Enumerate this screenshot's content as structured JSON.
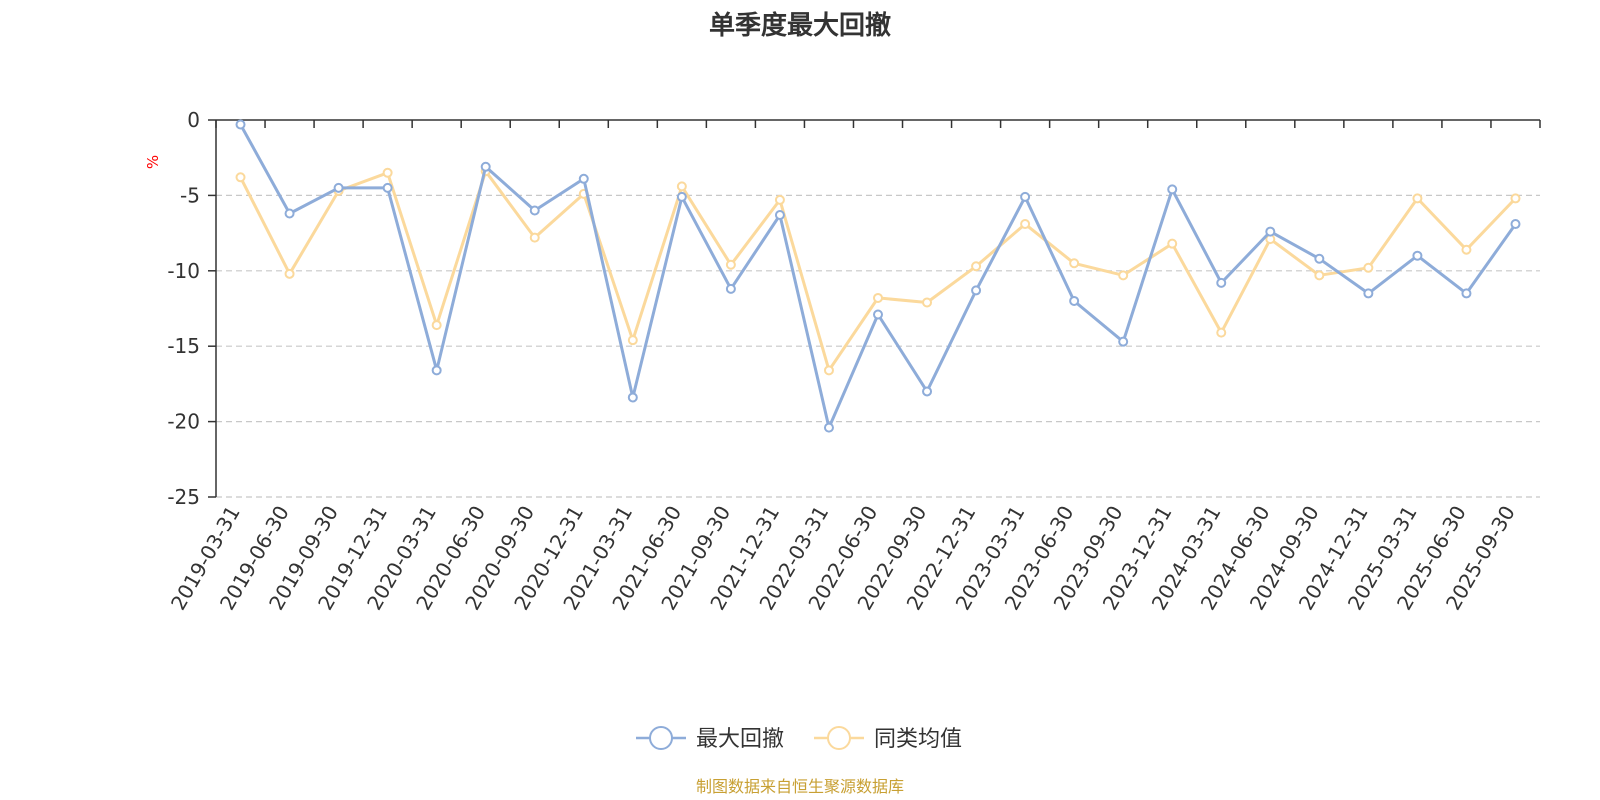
{
  "chart_data": {
    "type": "line",
    "title": "单季度最大回撤",
    "ylabel": "%",
    "ylim": [
      -25,
      0
    ],
    "yticks": [
      0,
      -5,
      -10,
      -15,
      -20,
      -25
    ],
    "grid": true,
    "legend_position": "bottom",
    "categories": [
      "2019-03-31",
      "2019-06-30",
      "2019-09-30",
      "2019-12-31",
      "2020-03-31",
      "2020-06-30",
      "2020-09-30",
      "2020-12-31",
      "2021-03-31",
      "2021-06-30",
      "2021-09-30",
      "2021-12-31",
      "2022-03-31",
      "2022-06-30",
      "2022-09-30",
      "2022-12-31",
      "2023-03-31",
      "2023-06-30",
      "2023-09-30",
      "2023-12-31",
      "2024-03-31",
      "2024-06-30",
      "2024-09-30",
      "2024-12-31",
      "2025-03-31",
      "2025-06-30",
      "2025-09-30"
    ],
    "series": [
      {
        "name": "最大回撤",
        "color": "#8eacd9",
        "values": [
          -0.3,
          -6.2,
          -4.5,
          -4.5,
          -16.6,
          -3.1,
          -6.0,
          -3.9,
          -18.4,
          -5.1,
          -11.2,
          -6.3,
          -20.4,
          -12.9,
          -18.0,
          -11.3,
          -5.1,
          -12.0,
          -14.7,
          -4.6,
          -10.8,
          -7.4,
          -9.2,
          -11.5,
          -9.0,
          -11.5,
          -6.9
        ]
      },
      {
        "name": "同类均值",
        "color": "#fbd99c",
        "values": [
          -3.8,
          -10.2,
          -4.7,
          -3.5,
          -13.6,
          -3.4,
          -7.8,
          -4.9,
          -14.6,
          -4.4,
          -9.6,
          -5.3,
          -16.6,
          -11.8,
          -12.1,
          -9.7,
          -6.9,
          -9.5,
          -10.3,
          -8.2,
          -14.1,
          -7.9,
          -10.3,
          -9.8,
          -5.2,
          -8.6,
          -5.2
        ]
      }
    ],
    "source_note": "制图数据来自恒生聚源数据库"
  }
}
